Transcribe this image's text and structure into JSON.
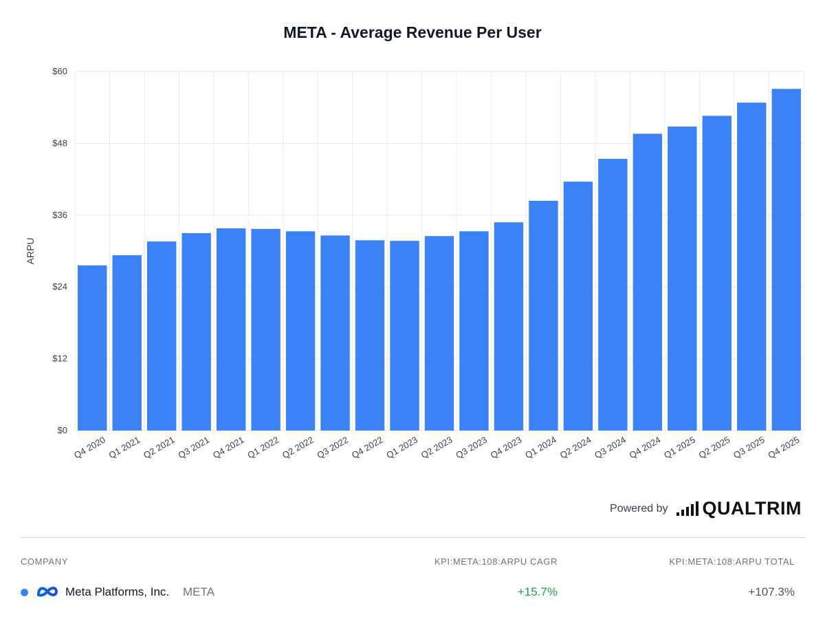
{
  "chart_data": {
    "type": "bar",
    "title": "META - Average Revenue Per User",
    "ylabel": "ARPU",
    "xlabel": "",
    "ylim": [
      0,
      60
    ],
    "yticks": [
      0,
      12,
      24,
      36,
      48,
      60
    ],
    "ytick_labels": [
      "$0",
      "$12",
      "$24",
      "$36",
      "$48",
      "$60"
    ],
    "categories": [
      "Q4 2020",
      "Q1 2021",
      "Q2 2021",
      "Q3 2021",
      "Q4 2021",
      "Q1 2022",
      "Q2 2022",
      "Q3 2022",
      "Q4 2022",
      "Q1 2023",
      "Q2 2023",
      "Q3 2023",
      "Q4 2023",
      "Q1 2024",
      "Q2 2024",
      "Q3 2024",
      "Q4 2024",
      "Q1 2025",
      "Q2 2025",
      "Q3 2025",
      "Q4 2025"
    ],
    "values": [
      27.6,
      29.3,
      31.6,
      33.0,
      33.8,
      33.7,
      33.3,
      32.6,
      31.8,
      31.7,
      32.5,
      33.3,
      34.8,
      38.4,
      41.6,
      45.4,
      49.6,
      50.8,
      52.6,
      54.8,
      57.1
    ],
    "bar_color": "#3b82f6",
    "grid": true,
    "legend": "none"
  },
  "powered_by": {
    "text": "Powered by",
    "brand": "QUALTRIM"
  },
  "table": {
    "headers": {
      "company": "COMPANY",
      "cagr": "KPI:META:108:ARPU CAGR",
      "total": "KPI:META:108:ARPU TOTAL"
    },
    "rows": [
      {
        "name": "Meta Platforms, Inc.",
        "ticker": "META",
        "cagr": "+15.7%",
        "total": "+107.3%",
        "dot_color": "#3b82f6",
        "logo_icon": "meta-infinity-logo",
        "cagr_color": "#16a34a"
      }
    ]
  }
}
